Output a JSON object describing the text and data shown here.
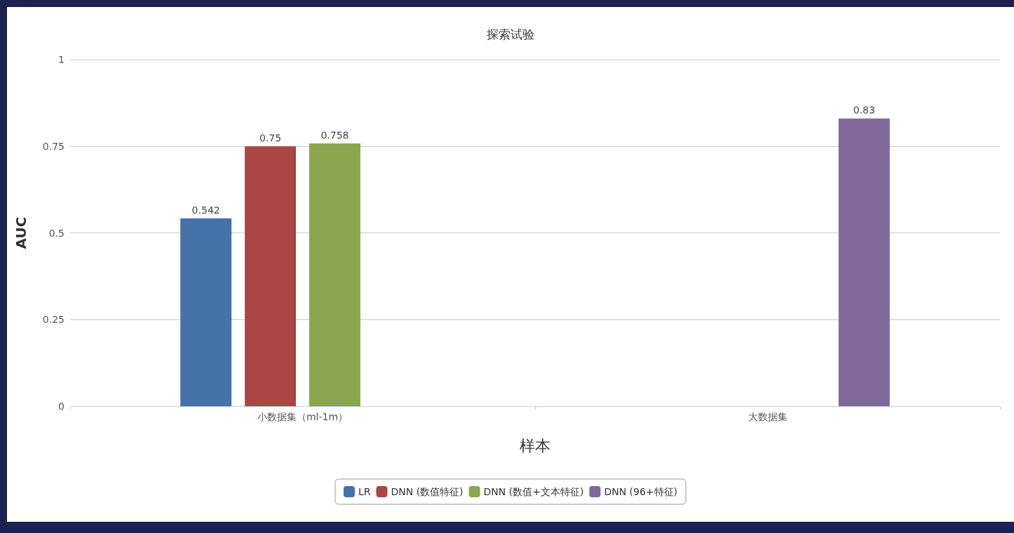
{
  "chart_data": {
    "type": "bar",
    "title": "探索试验",
    "xlabel": "样本",
    "ylabel": "AUC",
    "categories": [
      "小数据集（ml-1m）",
      "大数据集"
    ],
    "series": [
      {
        "name": "LR",
        "color": "#4572a7",
        "values": [
          0.542,
          null
        ]
      },
      {
        "name": "DNN (数值特征)",
        "color": "#aa4643",
        "values": [
          0.75,
          null
        ]
      },
      {
        "name": "DNN (数值+文本特征)",
        "color": "#89a54e",
        "values": [
          0.758,
          null
        ]
      },
      {
        "name": "DNN (96+特征)",
        "color": "#80699b",
        "values": [
          null,
          0.83
        ]
      }
    ],
    "ylim": [
      0,
      1
    ],
    "yticks": [
      0,
      0.25,
      0.5,
      0.75,
      1
    ],
    "grid": "y",
    "legend": "bottom",
    "data_labels": true
  }
}
